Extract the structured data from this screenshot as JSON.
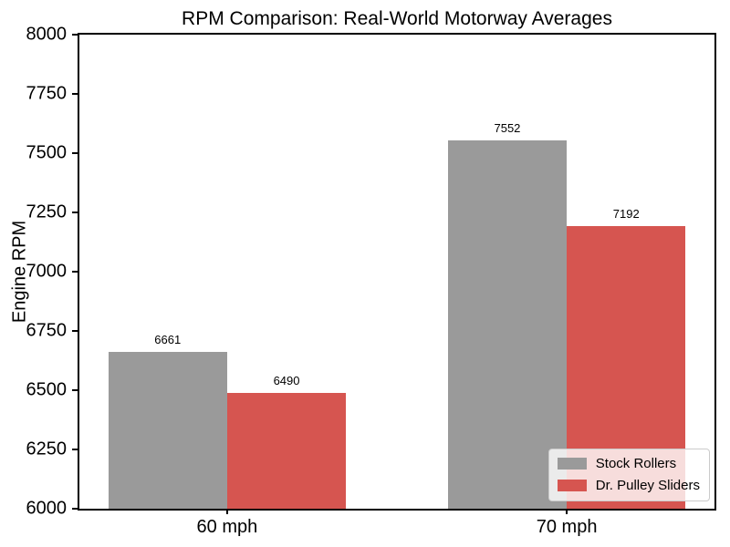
{
  "chart_data": {
    "type": "bar",
    "title": "RPM Comparison: Real-World Motorway Averages",
    "xlabel": "",
    "ylabel": "Engine RPM",
    "categories": [
      "60 mph",
      "70 mph"
    ],
    "series": [
      {
        "name": "Stock Rollers",
        "color": "#9a9a9a",
        "values": [
          6661,
          7552
        ]
      },
      {
        "name": "Dr. Pulley Sliders",
        "color": "#d65550",
        "values": [
          6490,
          7192
        ]
      }
    ],
    "ylim": [
      6000,
      8000
    ],
    "yticks": [
      6000,
      6250,
      6500,
      6750,
      7000,
      7250,
      7500,
      7750,
      8000
    ],
    "xlim": [
      -0.435,
      1.435
    ],
    "bar_width_data_units": 0.35,
    "value_labels_shown": true,
    "grid": false,
    "legend": {
      "position": "lower-right",
      "entries": [
        "Stock Rollers",
        "Dr. Pulley Sliders"
      ]
    },
    "colors": {
      "background": "#ffffff",
      "text": "#000000",
      "spine": "#000000",
      "legend_border": "#cbcbcb"
    }
  }
}
